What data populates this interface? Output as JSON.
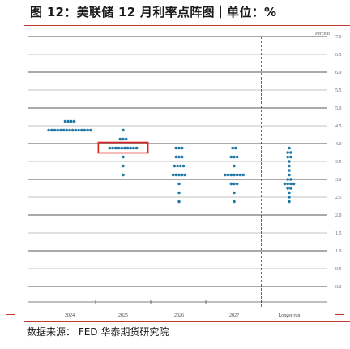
{
  "header": {
    "title": "图 12：美联储 12 月利率点阵图｜单位：%"
  },
  "footer": {
    "source": "数据来源： FED 华泰期货研究院"
  },
  "chart_data": {
    "type": "scatter",
    "ylabel": "Percent",
    "ylim": [
      0,
      7
    ],
    "y_ticks": [
      "0.0",
      "0.5",
      "1.0",
      "1.5",
      "2.0",
      "2.5",
      "3.0",
      "3.5",
      "4.0",
      "4.5",
      "5.0",
      "5.5",
      "6.0",
      "6.5",
      "7.0"
    ],
    "categories": [
      "2024",
      "2025",
      "2026",
      "2027",
      "Longer run"
    ],
    "grid": "horizontal",
    "highlight": {
      "category": "2025",
      "color": "#e02020"
    },
    "colors": {
      "dots": "#1f78a8",
      "highlight": "#e02020",
      "rule": "#c0392b"
    },
    "dots": [
      {
        "x": "2024",
        "y": 4.625,
        "count": 4
      },
      {
        "x": "2024",
        "y": 4.375,
        "count": 15
      },
      {
        "x": "2025",
        "y": 4.375,
        "count": 1
      },
      {
        "x": "2025",
        "y": 4.125,
        "count": 3
      },
      {
        "x": "2025",
        "y": 3.875,
        "count": 10
      },
      {
        "x": "2025",
        "y": 3.625,
        "count": 1
      },
      {
        "x": "2025",
        "y": 3.375,
        "count": 1
      },
      {
        "x": "2025",
        "y": 3.125,
        "count": 1
      },
      {
        "x": "2026",
        "y": 3.875,
        "count": 3
      },
      {
        "x": "2026",
        "y": 3.625,
        "count": 3
      },
      {
        "x": "2026",
        "y": 3.375,
        "count": 4
      },
      {
        "x": "2026",
        "y": 3.125,
        "count": 5
      },
      {
        "x": "2026",
        "y": 2.875,
        "count": 1
      },
      {
        "x": "2026",
        "y": 2.625,
        "count": 1
      },
      {
        "x": "2026",
        "y": 2.375,
        "count": 1
      },
      {
        "x": "2027",
        "y": 3.875,
        "count": 2
      },
      {
        "x": "2027",
        "y": 3.625,
        "count": 3
      },
      {
        "x": "2027",
        "y": 3.375,
        "count": 1
      },
      {
        "x": "2027",
        "y": 3.125,
        "count": 7
      },
      {
        "x": "2027",
        "y": 2.875,
        "count": 3
      },
      {
        "x": "2027",
        "y": 2.625,
        "count": 1
      },
      {
        "x": "2027",
        "y": 2.375,
        "count": 1
      },
      {
        "x": "Longer run",
        "y": 3.875,
        "count": 1
      },
      {
        "x": "Longer run",
        "y": 3.75,
        "count": 2
      },
      {
        "x": "Longer run",
        "y": 3.625,
        "count": 2
      },
      {
        "x": "Longer run",
        "y": 3.5,
        "count": 1
      },
      {
        "x": "Longer run",
        "y": 3.375,
        "count": 1
      },
      {
        "x": "Longer run",
        "y": 3.25,
        "count": 1
      },
      {
        "x": "Longer run",
        "y": 3.125,
        "count": 1
      },
      {
        "x": "Longer run",
        "y": 3.0,
        "count": 2
      },
      {
        "x": "Longer run",
        "y": 2.875,
        "count": 4
      },
      {
        "x": "Longer run",
        "y": 2.75,
        "count": 2
      },
      {
        "x": "Longer run",
        "y": 2.625,
        "count": 1
      },
      {
        "x": "Longer run",
        "y": 2.5,
        "count": 1
      },
      {
        "x": "Longer run",
        "y": 2.375,
        "count": 1
      }
    ]
  }
}
